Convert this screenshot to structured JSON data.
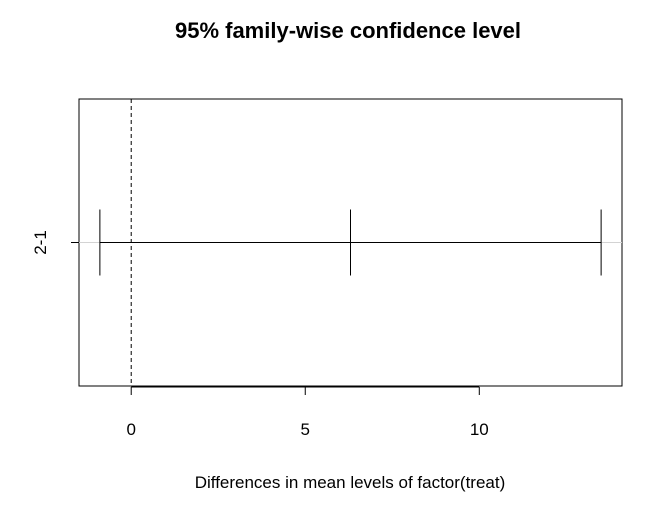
{
  "chart_data": {
    "type": "errorbar",
    "title": "95% family-wise confidence level",
    "xlabel": "Differences in mean levels of factor(treat)",
    "ylabel": "",
    "xlim": [
      -1.5,
      14.1
    ],
    "x_ticks": [
      0,
      5,
      10
    ],
    "x_tick_labels": [
      "0",
      "5",
      "10"
    ],
    "categories": [
      "2-1"
    ],
    "intervals": [
      {
        "label": "2-1",
        "lwr": -0.9,
        "diff": 6.3,
        "upr": 13.5
      }
    ],
    "reference_line": {
      "x": 0,
      "style": "dashed"
    },
    "grid": false,
    "legend": "none"
  }
}
